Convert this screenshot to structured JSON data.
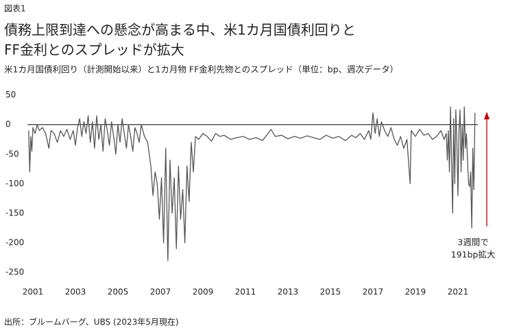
{
  "figure_label": "図表1",
  "source": "出所：ブルームバーグ、UBS (2023年5月現在)",
  "chart_data": {
    "type": "line",
    "title": [
      "債務上限到達への懸念が高まる中、米1カ月国債利回りと",
      "FF金利とのスプレッドが拡大"
    ],
    "subtitle": "米1カ月国債利回り（計測開始以来）と1カ月物 FF金利先物とのスプレッド（単位：bp、週次データ）",
    "annotation": [
      "3週間で",
      "191bp拡大"
    ],
    "color": "#555555",
    "xlim": [
      2000.75,
      2022.1
    ],
    "xticks": [
      2001,
      2003,
      2005,
      2007,
      2009,
      2011,
      2013,
      2015,
      2017,
      2019,
      2021
    ],
    "ylim": [
      -265,
      60
    ],
    "yticks": [
      50,
      0,
      -50,
      -100,
      -150,
      -200,
      -250
    ],
    "x": [
      2000.8,
      2000.85,
      2000.9,
      2000.95,
      2001,
      2001.1,
      2001.2,
      2001.3,
      2001.45,
      2001.6,
      2001.75,
      2001.85,
      2002,
      2002.15,
      2002.3,
      2002.45,
      2002.6,
      2002.75,
      2002.9,
      2003,
      2003.1,
      2003.2,
      2003.3,
      2003.4,
      2003.5,
      2003.6,
      2003.7,
      2003.8,
      2003.9,
      2004,
      2004.1,
      2004.2,
      2004.3,
      2004.4,
      2004.5,
      2004.6,
      2004.7,
      2004.8,
      2004.9,
      2005,
      2005.1,
      2005.2,
      2005.3,
      2005.4,
      2005.5,
      2005.6,
      2005.7,
      2005.8,
      2005.9,
      2006,
      2006.1,
      2006.25,
      2006.4,
      2006.55,
      2006.65,
      2006.75,
      2006.85,
      2006.95,
      2007.05,
      2007.15,
      2007.25,
      2007.35,
      2007.45,
      2007.55,
      2007.65,
      2007.75,
      2007.85,
      2007.95,
      2008.05,
      2008.15,
      2008.25,
      2008.35,
      2008.45,
      2008.55,
      2008.65,
      2008.8,
      2009,
      2009.2,
      2009.4,
      2009.6,
      2009.8,
      2010,
      2010.3,
      2010.6,
      2010.9,
      2011.2,
      2011.5,
      2011.8,
      2012,
      2012.2,
      2012.4,
      2012.7,
      2013,
      2013.3,
      2013.6,
      2013.9,
      2014.2,
      2014.5,
      2014.8,
      2015.1,
      2015.4,
      2015.7,
      2016,
      2016.2,
      2016.4,
      2016.6,
      2016.8,
      2016.9,
      2017,
      2017.1,
      2017.2,
      2017.3,
      2017.4,
      2017.55,
      2017.7,
      2017.85,
      2018,
      2018.15,
      2018.3,
      2018.45,
      2018.6,
      2018.75,
      2018.8,
      2019,
      2019.2,
      2019.4,
      2019.6,
      2019.8,
      2020,
      2020.2,
      2020.35,
      2020.45,
      2020.5,
      2020.55,
      2020.6,
      2020.65,
      2020.7,
      2020.75,
      2020.8,
      2020.85,
      2020.9,
      2020.95,
      2021,
      2021.05,
      2021.1,
      2021.15,
      2021.2,
      2021.25,
      2021.3,
      2021.35,
      2021.4,
      2021.45,
      2021.5,
      2021.55,
      2021.6,
      2021.65,
      2021.7,
      2021.75,
      2021.8
    ],
    "values": [
      -10,
      -80,
      -20,
      -45,
      -5,
      -15,
      0,
      -10,
      -5,
      -15,
      -40,
      -10,
      -15,
      -30,
      -10,
      -20,
      -8,
      -25,
      -10,
      -35,
      -5,
      10,
      -20,
      5,
      -15,
      15,
      -30,
      5,
      -40,
      15,
      -25,
      0,
      -45,
      10,
      -10,
      -35,
      5,
      -20,
      -50,
      0,
      -30,
      10,
      -15,
      -40,
      0,
      -20,
      -45,
      -5,
      -15,
      -30,
      0,
      -20,
      -30,
      -70,
      -120,
      -80,
      -100,
      -160,
      -90,
      -200,
      -40,
      -230,
      -60,
      -150,
      -90,
      -210,
      -70,
      -160,
      -110,
      -200,
      -70,
      -130,
      -30,
      -80,
      -20,
      -25,
      -15,
      -20,
      -28,
      -15,
      -20,
      -18,
      -25,
      -22,
      -20,
      -25,
      -22,
      -27,
      -18,
      -8,
      -20,
      -18,
      -24,
      -20,
      -23,
      -19,
      -22,
      -25,
      -18,
      -23,
      -20,
      -27,
      -18,
      -22,
      -15,
      -25,
      -10,
      -25,
      20,
      -15,
      10,
      -20,
      5,
      -10,
      -20,
      -5,
      -25,
      -35,
      -20,
      -40,
      -25,
      -100,
      -10,
      -20,
      -8,
      -18,
      -15,
      -25,
      -20,
      -10,
      -25,
      -15,
      -60,
      -10,
      -80,
      30,
      -60,
      -150,
      10,
      -100,
      25,
      -30,
      -120,
      -10,
      25,
      -80,
      0,
      -60,
      30,
      -40,
      -15,
      -60,
      -100,
      -105,
      -80,
      -175,
      -40,
      -110,
      20
    ]
  }
}
